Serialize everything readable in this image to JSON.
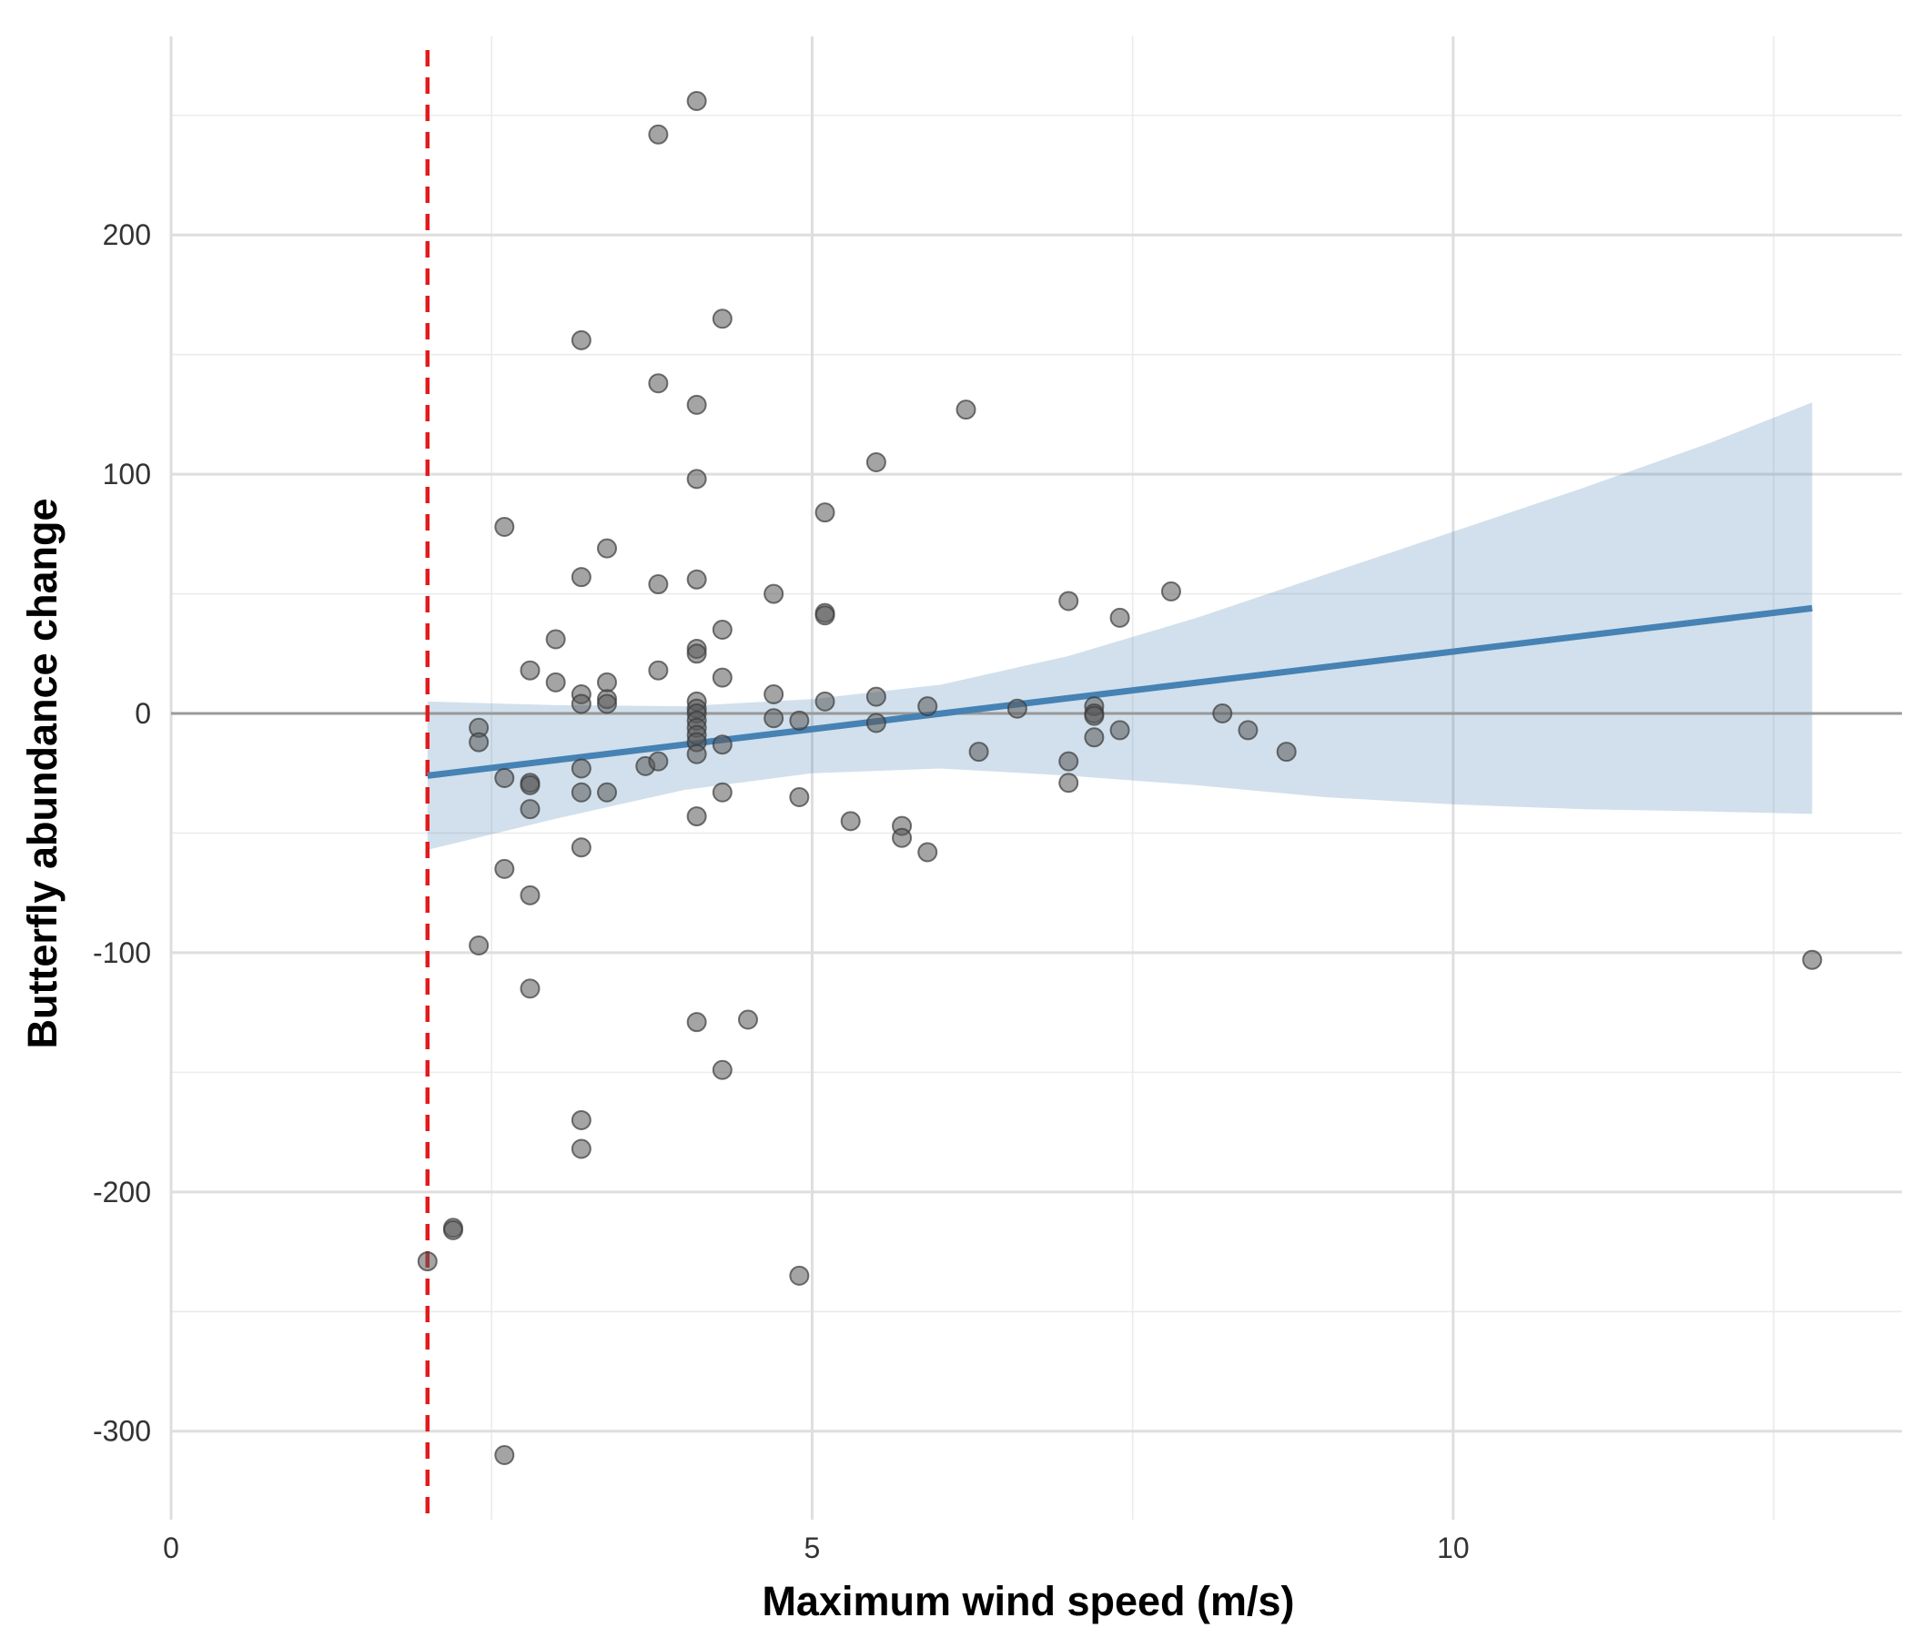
{
  "chart_data": {
    "type": "scatter",
    "title": "",
    "xlabel": "Maximum wind speed (m/s)",
    "ylabel": "Butterfly abundance change",
    "xlim": [
      0,
      13.5
    ],
    "ylim": [
      -337,
      283
    ],
    "x_ticks": [
      0,
      5,
      10
    ],
    "x_tick_labels": [
      "0",
      "5",
      "10"
    ],
    "y_ticks": [
      200,
      100,
      0,
      -100,
      -200,
      -300
    ],
    "y_tick_labels": [
      "200",
      "100",
      "0",
      "-100",
      "-200",
      "-300"
    ],
    "grid": true,
    "legend": "none",
    "reference_lines": {
      "vertical_dashed_x": 2.0,
      "horizontal_zero_y": 0
    },
    "trend_line": {
      "x": [
        2.0,
        12.8
      ],
      "y": [
        -26,
        44
      ]
    },
    "confidence_band": {
      "x": [
        2.0,
        3.0,
        4.0,
        5.0,
        6.0,
        7.0,
        8.0,
        9.0,
        10.0,
        11.0,
        12.0,
        12.8
      ],
      "upper": [
        5,
        3.5,
        3,
        6,
        12,
        24,
        40,
        58,
        76,
        94,
        113,
        130
      ],
      "lower": [
        -57,
        -44,
        -32,
        -25,
        -23,
        -26,
        -30,
        -35,
        -38,
        -40,
        -41,
        -42
      ]
    },
    "points": [
      [
        2.0,
        -229
      ],
      [
        2.2,
        -215
      ],
      [
        2.2,
        -216
      ],
      [
        2.4,
        -6
      ],
      [
        2.4,
        -12
      ],
      [
        2.4,
        -97
      ],
      [
        2.6,
        78
      ],
      [
        2.6,
        -27
      ],
      [
        2.6,
        -65
      ],
      [
        2.6,
        -310
      ],
      [
        2.8,
        18
      ],
      [
        2.8,
        -29
      ],
      [
        2.8,
        -30
      ],
      [
        2.8,
        -40
      ],
      [
        2.8,
        -76
      ],
      [
        2.8,
        -115
      ],
      [
        3.0,
        31
      ],
      [
        3.0,
        13
      ],
      [
        3.2,
        156
      ],
      [
        3.2,
        57
      ],
      [
        3.2,
        8
      ],
      [
        3.2,
        4
      ],
      [
        3.2,
        -23
      ],
      [
        3.2,
        -33
      ],
      [
        3.2,
        -56
      ],
      [
        3.2,
        -170
      ],
      [
        3.2,
        -182
      ],
      [
        3.4,
        69
      ],
      [
        3.4,
        13
      ],
      [
        3.4,
        6
      ],
      [
        3.4,
        4
      ],
      [
        3.4,
        -33
      ],
      [
        3.7,
        -22
      ],
      [
        3.8,
        242
      ],
      [
        3.8,
        138
      ],
      [
        3.8,
        54
      ],
      [
        3.8,
        18
      ],
      [
        3.8,
        -20
      ],
      [
        4.1,
        256
      ],
      [
        4.1,
        129
      ],
      [
        4.1,
        98
      ],
      [
        4.1,
        56
      ],
      [
        4.1,
        27
      ],
      [
        4.1,
        25
      ],
      [
        4.1,
        5
      ],
      [
        4.1,
        2
      ],
      [
        4.1,
        0
      ],
      [
        4.1,
        -3
      ],
      [
        4.1,
        -6
      ],
      [
        4.1,
        -9
      ],
      [
        4.1,
        -12
      ],
      [
        4.1,
        -17
      ],
      [
        4.1,
        -43
      ],
      [
        4.1,
        -129
      ],
      [
        4.3,
        165
      ],
      [
        4.3,
        35
      ],
      [
        4.3,
        15
      ],
      [
        4.3,
        -13
      ],
      [
        4.3,
        -33
      ],
      [
        4.3,
        -149
      ],
      [
        4.5,
        -128
      ],
      [
        4.7,
        50
      ],
      [
        4.7,
        8
      ],
      [
        4.7,
        -2
      ],
      [
        4.9,
        -3
      ],
      [
        4.9,
        -35
      ],
      [
        4.9,
        -235
      ],
      [
        5.1,
        84
      ],
      [
        5.1,
        42
      ],
      [
        5.1,
        41
      ],
      [
        5.1,
        5
      ],
      [
        5.3,
        -45
      ],
      [
        5.5,
        105
      ],
      [
        5.5,
        7
      ],
      [
        5.5,
        -4
      ],
      [
        5.7,
        -47
      ],
      [
        5.7,
        -52
      ],
      [
        5.9,
        3
      ],
      [
        5.9,
        -58
      ],
      [
        6.2,
        127
      ],
      [
        6.3,
        -16
      ],
      [
        6.6,
        2
      ],
      [
        7.0,
        47
      ],
      [
        7.0,
        -20
      ],
      [
        7.0,
        -29
      ],
      [
        7.2,
        3
      ],
      [
        7.2,
        0
      ],
      [
        7.2,
        -1
      ],
      [
        7.2,
        -10
      ],
      [
        7.4,
        40
      ],
      [
        7.4,
        -7
      ],
      [
        7.8,
        51
      ],
      [
        8.2,
        0
      ],
      [
        8.4,
        -7
      ],
      [
        8.7,
        -16
      ],
      [
        12.8,
        -103
      ]
    ]
  }
}
